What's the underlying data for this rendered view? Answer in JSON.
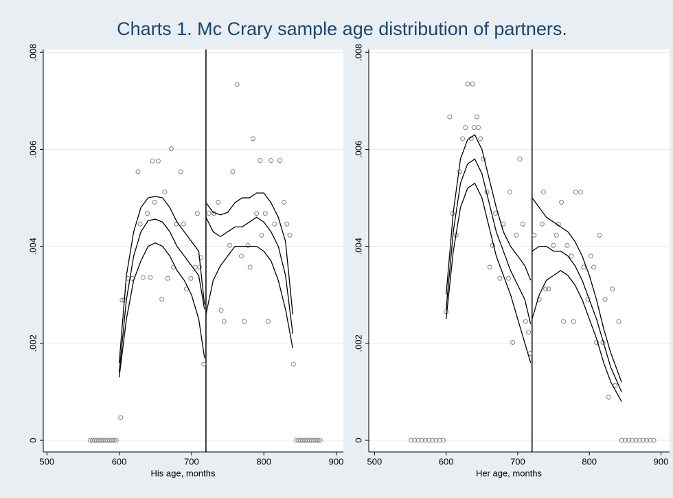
{
  "title": "Charts 1.  Mc Crary sample age distribution of partners.",
  "chart_data": [
    {
      "type": "scatter",
      "xlabel": "His age, months",
      "xlim": [
        495,
        910
      ],
      "ylim": [
        -0.00024,
        0.00806
      ],
      "xticks": [
        500,
        600,
        700,
        800,
        900
      ],
      "yticks": [
        0,
        {
          "value": 0.002,
          "label": ".002"
        },
        {
          "value": 0.004,
          "label": ".004"
        },
        {
          "value": 0.006,
          "label": ".006"
        },
        {
          "value": 0.008,
          "label": ".008"
        }
      ],
      "grid": true,
      "vline": 720,
      "points": {
        "color": "#808080",
        "x": [
          560,
          563,
          566,
          569,
          572,
          575,
          578,
          581,
          584,
          587,
          590,
          593,
          596,
          845,
          848,
          851,
          854,
          857,
          860,
          863,
          866,
          869,
          872,
          875,
          878,
          602,
          604,
          607,
          612,
          618,
          626,
          629,
          633,
          639,
          643,
          646,
          654,
          649,
          659,
          663,
          667,
          672,
          675,
          679,
          685,
          689,
          693,
          699,
          705,
          708,
          711,
          713,
          717,
          724,
          731,
          737,
          741,
          745,
          753,
          757,
          763,
          769,
          773,
          778,
          781,
          785,
          790,
          795,
          797,
          802,
          806,
          810,
          815,
          822,
          828,
          832,
          836,
          841
        ],
        "values": [
          0,
          0,
          0,
          0,
          0,
          0,
          0,
          0,
          0,
          0,
          0,
          0,
          0,
          0,
          0,
          0,
          0,
          0,
          0,
          0,
          0,
          0,
          0,
          0,
          0,
          0.00047,
          0.00289,
          0.00289,
          0.00334,
          0.00334,
          0.00554,
          0.00446,
          0.00336,
          0.00468,
          0.00336,
          0.00576,
          0.00576,
          0.00491,
          0.00291,
          0.00512,
          0.00334,
          0.00601,
          0.00357,
          0.00446,
          0.00554,
          0.00446,
          0.00312,
          0.00334,
          0.00357,
          0.00468,
          0.00357,
          0.00377,
          0.00157,
          0.00468,
          0.00468,
          0.00491,
          0.00268,
          0.00245,
          0.00402,
          0.00554,
          0.00734,
          0.0038,
          0.00245,
          0.00402,
          0.00357,
          0.00622,
          0.00468,
          0.00577,
          0.00423,
          0.00468,
          0.00245,
          0.00577,
          0.00446,
          0.00577,
          0.00491,
          0.00446,
          0.00423,
          0.00157
        ]
      },
      "lines": [
        {
          "color": "#000000",
          "x": [
            600,
            610,
            620,
            630,
            640,
            650,
            660,
            670,
            680,
            690,
            700,
            710,
            718
          ],
          "values": [
            0.0016,
            0.0034,
            0.0043,
            0.0048,
            0.005,
            0.00503,
            0.005,
            0.0048,
            0.0045,
            0.0043,
            0.0041,
            0.0039,
            0.0028
          ]
        },
        {
          "color": "#000000",
          "x": [
            600,
            610,
            620,
            630,
            640,
            650,
            660,
            670,
            680,
            690,
            700,
            710,
            718
          ],
          "values": [
            0.0014,
            0.0029,
            0.0038,
            0.0043,
            0.00453,
            0.00456,
            0.0045,
            0.0043,
            0.004,
            0.0038,
            0.0036,
            0.0034,
            0.0027
          ]
        },
        {
          "color": "#000000",
          "x": [
            600,
            610,
            620,
            630,
            640,
            650,
            660,
            670,
            680,
            690,
            700,
            710,
            718
          ],
          "values": [
            0.0013,
            0.0025,
            0.0033,
            0.0037,
            0.004,
            0.00407,
            0.004,
            0.0038,
            0.0035,
            0.0033,
            0.003,
            0.0025,
            0.0017
          ]
        },
        {
          "color": "#000000",
          "x": [
            720,
            730,
            740,
            750,
            760,
            770,
            780,
            790,
            800,
            810,
            820,
            830,
            840
          ],
          "values": [
            0.0049,
            0.0047,
            0.00465,
            0.0047,
            0.0049,
            0.005,
            0.005,
            0.0051,
            0.0051,
            0.0049,
            0.0046,
            0.0041,
            0.0026
          ]
        },
        {
          "color": "#000000",
          "x": [
            720,
            730,
            740,
            750,
            760,
            770,
            780,
            790,
            800,
            810,
            820,
            830,
            840
          ],
          "values": [
            0.0046,
            0.0043,
            0.0042,
            0.0043,
            0.0044,
            0.0044,
            0.0045,
            0.0046,
            0.0045,
            0.0043,
            0.004,
            0.0034,
            0.0022
          ]
        },
        {
          "color": "#000000",
          "x": [
            720,
            730,
            740,
            750,
            760,
            770,
            780,
            790,
            800,
            810,
            820,
            830,
            840
          ],
          "values": [
            0.0026,
            0.0033,
            0.0036,
            0.0038,
            0.004,
            0.004,
            0.004,
            0.004,
            0.0039,
            0.0037,
            0.0033,
            0.0027,
            0.0019
          ]
        }
      ]
    },
    {
      "type": "scatter",
      "xlabel": "Her age, months",
      "xlim": [
        492,
        912
      ],
      "ylim": [
        -0.00024,
        0.00806
      ],
      "xticks": [
        500,
        600,
        700,
        800,
        900
      ],
      "yticks": [
        0,
        {
          "value": 0.002,
          "label": ".002"
        },
        {
          "value": 0.004,
          "label": ".004"
        },
        {
          "value": 0.006,
          "label": ".006"
        },
        {
          "value": 0.008,
          "label": ".008"
        }
      ],
      "grid": true,
      "vline": 720,
      "points": {
        "color": "#808080",
        "x": [
          551,
          556,
          561,
          566,
          571,
          576,
          581,
          586,
          591,
          596,
          845,
          850,
          855,
          860,
          865,
          870,
          875,
          880,
          885,
          890,
          600,
          605,
          609,
          614,
          619,
          623,
          627,
          630,
          637,
          635,
          639,
          645,
          643,
          648,
          652,
          657,
          661,
          665,
          669,
          675,
          680,
          687,
          689,
          693,
          698,
          703,
          707,
          711,
          715,
          717,
          723,
          730,
          734,
          736,
          739,
          743,
          750,
          754,
          757,
          761,
          764,
          769,
          775,
          778,
          781,
          788,
          792,
          798,
          802,
          806,
          810,
          814,
          819,
          822,
          827,
          832,
          836,
          841
        ],
        "values": [
          0,
          0,
          0,
          0,
          0,
          0,
          0,
          0,
          0,
          0,
          0,
          0,
          0,
          0,
          0,
          0,
          0,
          0,
          0,
          0,
          0.00265,
          0.00667,
          0.00468,
          0.00423,
          0.00554,
          0.00622,
          0.00645,
          0.00735,
          0.00735,
          0.00622,
          0.00645,
          0.00645,
          0.00667,
          0.00622,
          0.0058,
          0.00512,
          0.00357,
          0.00402,
          0.00468,
          0.00334,
          0.00446,
          0.00334,
          0.00512,
          0.00202,
          0.00423,
          0.0058,
          0.00446,
          0.00245,
          0.00223,
          0.00179,
          0.00423,
          0.00291,
          0.00446,
          0.00512,
          0.00312,
          0.00312,
          0.00402,
          0.00423,
          0.00446,
          0.00491,
          0.00245,
          0.00402,
          0.0038,
          0.00245,
          0.00512,
          0.00512,
          0.00357,
          0.00291,
          0.0038,
          0.00357,
          0.00202,
          0.00423,
          0.00202,
          0.00291,
          0.00089,
          0.00312,
          0.00113,
          0.00245
        ]
      },
      "lines": [
        {
          "color": "#000000",
          "x": [
            600,
            610,
            620,
            630,
            640,
            650,
            660,
            670,
            680,
            690,
            700,
            710,
            718
          ],
          "values": [
            0.003,
            0.0047,
            0.0058,
            0.0062,
            0.0063,
            0.006,
            0.0054,
            0.0048,
            0.0043,
            0.004,
            0.0038,
            0.0036,
            0.0033
          ]
        },
        {
          "color": "#000000",
          "x": [
            600,
            610,
            620,
            630,
            640,
            650,
            660,
            670,
            680,
            690,
            700,
            710,
            718
          ],
          "values": [
            0.0027,
            0.0043,
            0.0053,
            0.0057,
            0.0058,
            0.0055,
            0.0049,
            0.0043,
            0.0039,
            0.0035,
            0.0032,
            0.0029,
            0.0024
          ]
        },
        {
          "color": "#000000",
          "x": [
            600,
            610,
            620,
            630,
            640,
            650,
            660,
            670,
            680,
            690,
            700,
            710,
            718
          ],
          "values": [
            0.0025,
            0.0039,
            0.0048,
            0.0052,
            0.0053,
            0.005,
            0.0044,
            0.0038,
            0.0034,
            0.003,
            0.0025,
            0.002,
            0.0016
          ]
        },
        {
          "color": "#000000",
          "x": [
            720,
            730,
            740,
            750,
            760,
            770,
            780,
            790,
            800,
            810,
            820,
            830,
            845
          ],
          "values": [
            0.005,
            0.0048,
            0.0046,
            0.0045,
            0.0044,
            0.0043,
            0.0041,
            0.0038,
            0.0034,
            0.0029,
            0.0023,
            0.0018,
            0.0012
          ]
        },
        {
          "color": "#000000",
          "x": [
            720,
            730,
            740,
            750,
            760,
            770,
            780,
            790,
            800,
            810,
            820,
            830,
            845
          ],
          "values": [
            0.0039,
            0.004,
            0.004,
            0.0039,
            0.0039,
            0.0038,
            0.0036,
            0.0033,
            0.0029,
            0.0025,
            0.002,
            0.0015,
            0.001
          ]
        },
        {
          "color": "#000000",
          "x": [
            720,
            730,
            740,
            750,
            760,
            770,
            780,
            790,
            800,
            810,
            820,
            830,
            845
          ],
          "values": [
            0.0025,
            0.003,
            0.0033,
            0.0034,
            0.0035,
            0.0034,
            0.0032,
            0.0029,
            0.0025,
            0.0021,
            0.0016,
            0.0012,
            0.0008
          ]
        }
      ]
    }
  ]
}
